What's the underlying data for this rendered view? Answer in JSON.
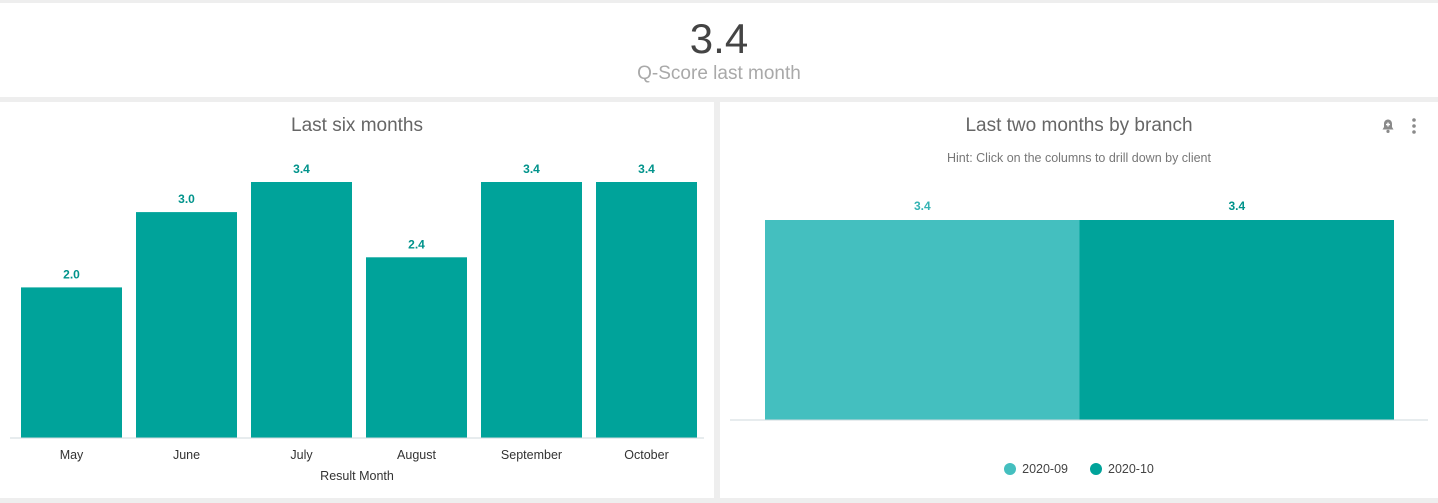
{
  "kpi": {
    "value": "3.4",
    "label": "Q-Score last month"
  },
  "colors": {
    "primary": "#00a39a",
    "secondary": "#44bfbf",
    "label": "#00938b"
  },
  "left_panel": {
    "title": "Last six months"
  },
  "right_panel": {
    "title": "Last two months by branch",
    "hint": "Hint: Click on the columns to drill down by client",
    "icons": [
      "bell-icon",
      "kebab-menu-icon"
    ]
  },
  "chart_data": [
    {
      "type": "bar",
      "title": "Last six months",
      "xlabel": "Result Month",
      "ylabel": "",
      "categories": [
        "May",
        "June",
        "July",
        "August",
        "September",
        "October"
      ],
      "values": [
        2.0,
        3.0,
        3.4,
        2.4,
        3.4,
        3.4
      ],
      "value_labels": [
        "2.0",
        "3.0",
        "3.4",
        "2.4",
        "3.4",
        "3.4"
      ],
      "ylim": [
        0,
        3.4
      ],
      "grid": false,
      "legend": "none"
    },
    {
      "type": "bar",
      "title": "Last two months by branch",
      "categories": [
        ""
      ],
      "series": [
        {
          "name": "2020-09",
          "values": [
            3.4
          ],
          "value_label": "3.4",
          "color": "#44bfbf"
        },
        {
          "name": "2020-10",
          "values": [
            3.4
          ],
          "value_label": "3.4",
          "color": "#00a39a"
        }
      ],
      "ylim": [
        0,
        3.4
      ],
      "grid": false,
      "legend": "bottom-center"
    }
  ]
}
